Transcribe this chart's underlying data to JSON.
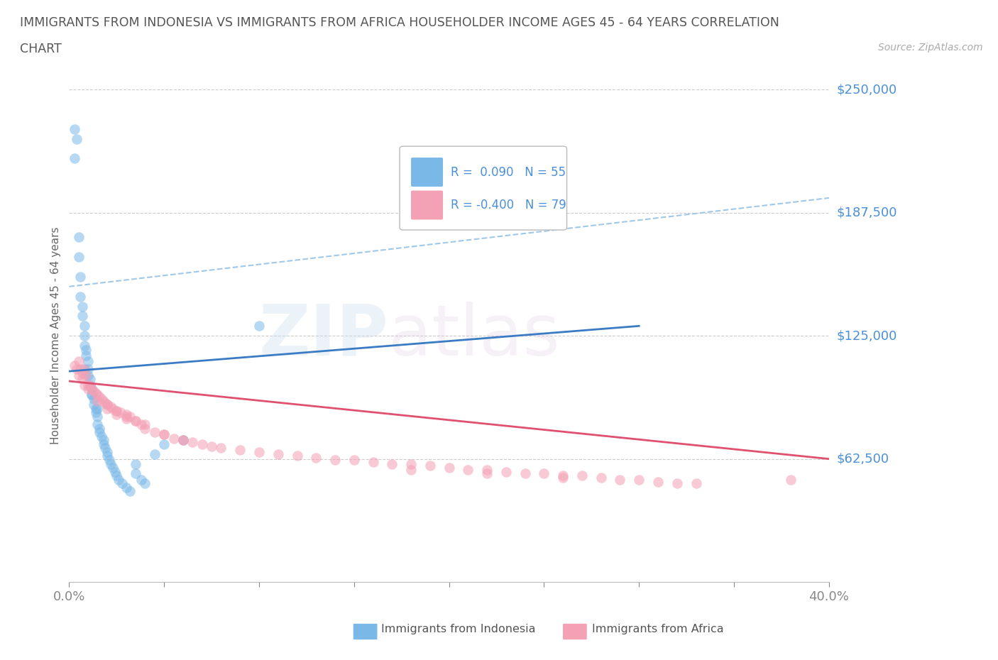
{
  "title_line1": "IMMIGRANTS FROM INDONESIA VS IMMIGRANTS FROM AFRICA HOUSEHOLDER INCOME AGES 45 - 64 YEARS CORRELATION",
  "title_line2": "CHART",
  "source": "Source: ZipAtlas.com",
  "ylabel": "Householder Income Ages 45 - 64 years",
  "xlim": [
    0.0,
    0.4
  ],
  "ylim": [
    0,
    250000
  ],
  "yticks": [
    0,
    62500,
    125000,
    187500,
    250000
  ],
  "ytick_labels": [
    "",
    "$62,500",
    "$125,000",
    "$187,500",
    "$250,000"
  ],
  "xticks": [
    0.0,
    0.05,
    0.1,
    0.15,
    0.2,
    0.25,
    0.3,
    0.35,
    0.4
  ],
  "indonesia_R": 0.09,
  "indonesia_N": 55,
  "africa_R": -0.4,
  "africa_N": 79,
  "indonesia_color": "#7ab8e8",
  "africa_color": "#f4a0b5",
  "indonesia_line_color": "#3a7cc4",
  "africa_line_color": "#e05070",
  "indonesia_dash_color": "#a0c8e8",
  "background_color": "#ffffff",
  "grid_color": "#cccccc",
  "title_color": "#555555",
  "axis_label_color": "#666666",
  "tick_label_color": "#4a90d9",
  "watermark_zip": "ZIP",
  "watermark_atlas": "atlas",
  "legend_text_color": "#4a90d9",
  "legend_n_color": "#333333",
  "indonesia_x": [
    0.003,
    0.003,
    0.004,
    0.005,
    0.005,
    0.006,
    0.006,
    0.007,
    0.007,
    0.008,
    0.008,
    0.008,
    0.009,
    0.009,
    0.01,
    0.01,
    0.01,
    0.011,
    0.011,
    0.012,
    0.012,
    0.013,
    0.013,
    0.014,
    0.014,
    0.015,
    0.015,
    0.016,
    0.016,
    0.017,
    0.018,
    0.018,
    0.019,
    0.02,
    0.02,
    0.021,
    0.022,
    0.023,
    0.024,
    0.025,
    0.026,
    0.028,
    0.03,
    0.032,
    0.035,
    0.038,
    0.04,
    0.045,
    0.05,
    0.06,
    0.008,
    0.012,
    0.015,
    0.035,
    0.1
  ],
  "indonesia_y": [
    230000,
    215000,
    225000,
    175000,
    165000,
    155000,
    145000,
    140000,
    135000,
    130000,
    125000,
    120000,
    118000,
    115000,
    112000,
    108000,
    105000,
    103000,
    100000,
    98000,
    95000,
    93000,
    90000,
    88000,
    86000,
    84000,
    80000,
    78000,
    76000,
    74000,
    72000,
    70000,
    68000,
    66000,
    64000,
    62000,
    60000,
    58000,
    56000,
    54000,
    52000,
    50000,
    48000,
    46000,
    55000,
    52000,
    50000,
    65000,
    70000,
    72000,
    108000,
    95000,
    88000,
    60000,
    130000
  ],
  "africa_x": [
    0.003,
    0.004,
    0.005,
    0.005,
    0.006,
    0.007,
    0.007,
    0.008,
    0.008,
    0.009,
    0.01,
    0.01,
    0.011,
    0.012,
    0.013,
    0.014,
    0.015,
    0.016,
    0.017,
    0.018,
    0.019,
    0.02,
    0.022,
    0.023,
    0.025,
    0.027,
    0.03,
    0.032,
    0.035,
    0.038,
    0.04,
    0.045,
    0.05,
    0.055,
    0.06,
    0.065,
    0.07,
    0.075,
    0.08,
    0.09,
    0.1,
    0.11,
    0.12,
    0.13,
    0.14,
    0.15,
    0.16,
    0.17,
    0.18,
    0.19,
    0.2,
    0.21,
    0.22,
    0.23,
    0.24,
    0.25,
    0.26,
    0.27,
    0.28,
    0.29,
    0.3,
    0.31,
    0.32,
    0.33,
    0.02,
    0.025,
    0.03,
    0.015,
    0.02,
    0.025,
    0.03,
    0.035,
    0.04,
    0.05,
    0.06,
    0.18,
    0.22,
    0.26,
    0.38
  ],
  "africa_y": [
    110000,
    108000,
    112000,
    105000,
    108000,
    106000,
    103000,
    108000,
    100000,
    105000,
    100000,
    98000,
    100000,
    98000,
    97000,
    96000,
    95000,
    94000,
    93000,
    92000,
    91000,
    90000,
    89000,
    88000,
    87000,
    86000,
    85000,
    84000,
    82000,
    80000,
    78000,
    76000,
    75000,
    73000,
    72000,
    71000,
    70000,
    69000,
    68000,
    67000,
    66000,
    65000,
    64000,
    63000,
    62000,
    62000,
    61000,
    60000,
    60000,
    59000,
    58000,
    57000,
    57000,
    56000,
    55000,
    55000,
    54000,
    54000,
    53000,
    52000,
    52000,
    51000,
    50000,
    50000,
    88000,
    85000,
    83000,
    92000,
    90000,
    87000,
    84000,
    82000,
    80000,
    75000,
    72000,
    57000,
    55000,
    53000,
    52000
  ],
  "indo_line_x0": 0.0,
  "indo_line_y0": 107000,
  "indo_line_x1": 0.3,
  "indo_line_y1": 130000,
  "afr_line_x0": 0.0,
  "afr_line_y0": 102000,
  "afr_line_x1": 0.4,
  "afr_line_y1": 62500,
  "dash_line_x0": 0.0,
  "dash_line_y0": 150000,
  "dash_line_x1": 0.4,
  "dash_line_y1": 195000
}
